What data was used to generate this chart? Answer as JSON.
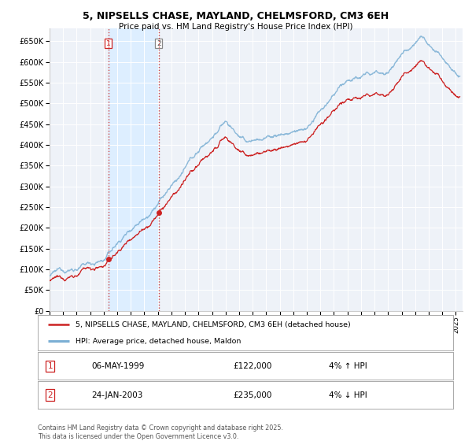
{
  "title": "5, NIPSELLS CHASE, MAYLAND, CHELMSFORD, CM3 6EH",
  "subtitle": "Price paid vs. HM Land Registry's House Price Index (HPI)",
  "legend_line1": "5, NIPSELLS CHASE, MAYLAND, CHELMSFORD, CM3 6EH (detached house)",
  "legend_line2": "HPI: Average price, detached house, Maldon",
  "hpi_color": "#7bafd4",
  "price_color": "#cc2222",
  "shade_color": "#ddeeff",
  "sale1_date_label": "06-MAY-1999",
  "sale1_price": 122000,
  "sale1_pct": "4% ↑ HPI",
  "sale1_year": 1999.35,
  "sale2_date_label": "24-JAN-2003",
  "sale2_price": 235000,
  "sale2_pct": "4% ↓ HPI",
  "sale2_year": 2003.07,
  "xmin": 1995,
  "xmax": 2025.5,
  "ymin": 0,
  "ymax": 680000,
  "yticks": [
    0,
    50000,
    100000,
    150000,
    200000,
    250000,
    300000,
    350000,
    400000,
    450000,
    500000,
    550000,
    600000,
    650000
  ],
  "footer": "Contains HM Land Registry data © Crown copyright and database right 2025.\nThis data is licensed under the Open Government Licence v3.0.",
  "bg_color": "#ffffff",
  "plot_bg_color": "#eef2f8"
}
